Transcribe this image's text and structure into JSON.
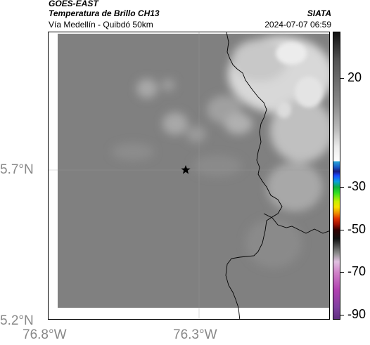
{
  "header": {
    "satellite": "GOES-EAST",
    "product": "Temperatura de Brillo CH13",
    "organization": "SIATA",
    "region": "Vía Medellín - Quibdó 50km",
    "datetime": "2024-07-07 06:59"
  },
  "map": {
    "y_ticks": [
      "5.7°N",
      "5.2°N"
    ],
    "x_ticks": [
      "76.8°W",
      "76.3°W"
    ],
    "marker_icon": "star-icon"
  },
  "colorbar": {
    "labels": [
      "20",
      "-30",
      "-50",
      "-70",
      "-90"
    ],
    "label_values": [
      20,
      -30,
      -50,
      -70,
      -90
    ]
  },
  "colors": {
    "base_gray": "#808080",
    "cloud_white": "#e6e6e6",
    "border_line": "#000000"
  }
}
